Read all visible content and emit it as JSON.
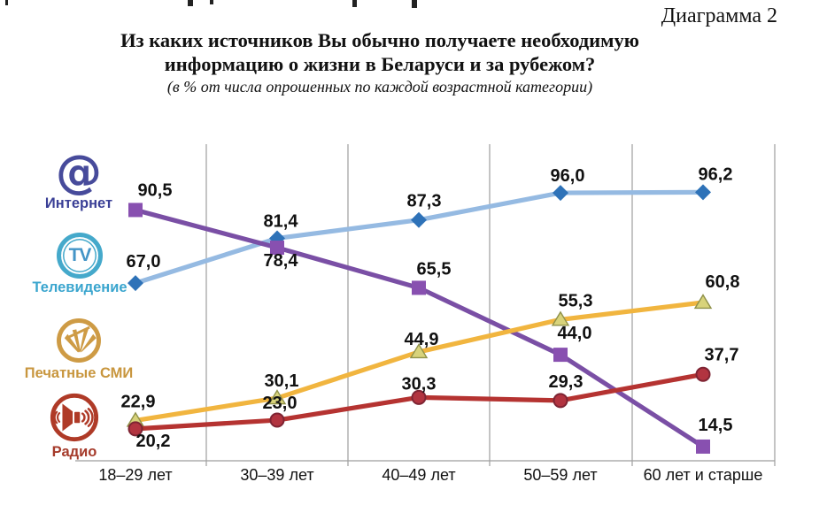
{
  "page": {
    "corner_label": "Диаграмма 2",
    "title_line1": "Из каких источников Вы обычно получаете необходимую",
    "title_line2": "информацию о жизни в Беларуси и за рубежом?",
    "subtitle": "(в % от числа опрошенных по каждой возрастной категории)"
  },
  "legend": [
    {
      "id": "internet",
      "label": "Интернет",
      "icon": "at-icon",
      "color": "#3A3F96",
      "icon_color": "#474B9B"
    },
    {
      "id": "tv",
      "label": "Телевидение",
      "icon": "tv-icon",
      "color": "#3AA5CE",
      "icon_color": "#45A9CB",
      "icon_text": "TV"
    },
    {
      "id": "print",
      "label": "Печатные СМИ",
      "icon": "newspaper-icon",
      "color": "#C8963E",
      "icon_color": "#CE9B45"
    },
    {
      "id": "radio",
      "label": "Радио",
      "icon": "speaker-icon",
      "color": "#A53A2A",
      "icon_color": "#AF3A27"
    }
  ],
  "chart_data": {
    "type": "line",
    "title": "Из каких источников Вы обычно получаете необходимую информацию о жизни в Беларуси и за рубежом?",
    "subtitle": "(в % от числа опрошенных по каждой возрастной категории)",
    "unit": "%",
    "categories": [
      "18–29 лет",
      "30–39 лет",
      "40–49 лет",
      "50–59 лет",
      "60 лет и старше"
    ],
    "series": [
      {
        "name": "Интернет",
        "marker": "square",
        "color": "#7A4FA5",
        "marker_color": "#8850B0",
        "marker_stroke": "#6A3E92",
        "values": [
          90.5,
          78.4,
          65.5,
          44.0,
          14.5
        ],
        "labels": [
          "90,5",
          "78,4",
          "65,5",
          "44,0",
          "14,5"
        ]
      },
      {
        "name": "Телевидение",
        "marker": "diamond",
        "color": "#95BAE2",
        "marker_color": "#2E72B8",
        "marker_stroke": "#2E72B8",
        "values": [
          67.0,
          81.4,
          87.3,
          96.0,
          96.2
        ],
        "labels": [
          "67,0",
          "81,4",
          "87,3",
          "96,0",
          "96,2"
        ]
      },
      {
        "name": "Печатные СМИ",
        "marker": "triangle",
        "color": "#F1B53F",
        "marker_color": "#D8D37B",
        "marker_stroke": "#8F9149",
        "values": [
          22.9,
          30.1,
          44.9,
          55.3,
          60.8
        ],
        "labels": [
          "22,9",
          "30,1",
          "44,9",
          "55,3",
          "60,8"
        ]
      },
      {
        "name": "Радио",
        "marker": "circle",
        "color": "#B53331",
        "marker_color": "#B23440",
        "marker_stroke": "#7E2433",
        "values": [
          20.2,
          23.0,
          30.3,
          29.3,
          37.7
        ],
        "labels": [
          "20,2",
          "23,0",
          "30,3",
          "29,3",
          "37,7"
        ]
      }
    ],
    "xlabel": "",
    "ylabel": "",
    "ylim": [
      10,
      110
    ],
    "y_axis_shown": false,
    "grid": "vertical-only",
    "legend_position": "left",
    "value_labels_shown": true,
    "label_color": "#111111",
    "grid_color": "#9E9E9E"
  }
}
